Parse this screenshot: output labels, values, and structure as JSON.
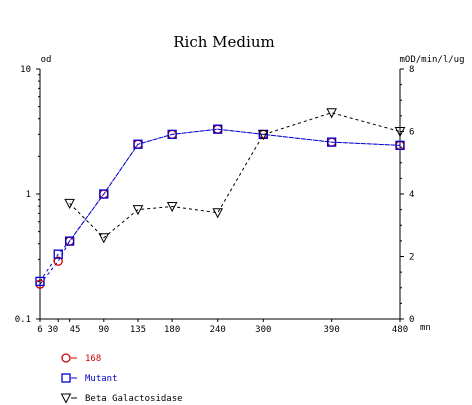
{
  "chart_data": {
    "type": "line",
    "title": "Rich Medium",
    "xlabel": "mn",
    "ylabel_left": "od",
    "ylabel_right": "mOD/min/l/ug",
    "x_ticks": [
      6,
      30,
      45,
      90,
      135,
      180,
      240,
      300,
      390,
      480
    ],
    "x_tick_labels": [
      "6",
      "30",
      "45",
      "90",
      "135",
      "180",
      "240",
      "300",
      "390",
      "480"
    ],
    "xlim": [
      6,
      480
    ],
    "left_axis": {
      "scale": "log",
      "ylim": [
        0.1,
        10
      ],
      "tick_labels": [
        "0.1",
        "1",
        "10"
      ]
    },
    "right_axis": {
      "scale": "linear",
      "ylim": [
        0,
        8
      ],
      "tick_labels": [
        "0",
        "2",
        "4",
        "6",
        "8"
      ]
    },
    "grid": false,
    "series": [
      {
        "name": "168",
        "axis": "left",
        "marker": "circle",
        "color": "#cc0000",
        "line_color": "#0000cc",
        "x": [
          6,
          30,
          45,
          90,
          135,
          180,
          240,
          300,
          390,
          480
        ],
        "y": [
          0.19,
          0.29,
          0.42,
          1.0,
          2.5,
          3.0,
          3.3,
          3.0,
          2.6,
          2.45
        ]
      },
      {
        "name": "Mutant",
        "axis": "left",
        "marker": "square",
        "color": "#0000cc",
        "line_color": "#0000cc",
        "x": [
          6,
          30,
          45,
          90,
          135,
          180,
          240,
          300,
          390,
          480
        ],
        "y": [
          0.2,
          0.33,
          0.42,
          1.0,
          2.5,
          3.0,
          3.3,
          3.0,
          2.6,
          2.45
        ]
      },
      {
        "name": "Beta Galactosidase",
        "axis": "right",
        "marker": "triangle-down",
        "color": "#000000",
        "line_color": "#000000",
        "x": [
          45,
          90,
          135,
          180,
          240,
          300,
          390,
          480
        ],
        "y": [
          3.7,
          2.6,
          3.5,
          3.6,
          3.4,
          5.9,
          6.6,
          6.0
        ]
      }
    ],
    "legend_placement": "bottom-left"
  }
}
